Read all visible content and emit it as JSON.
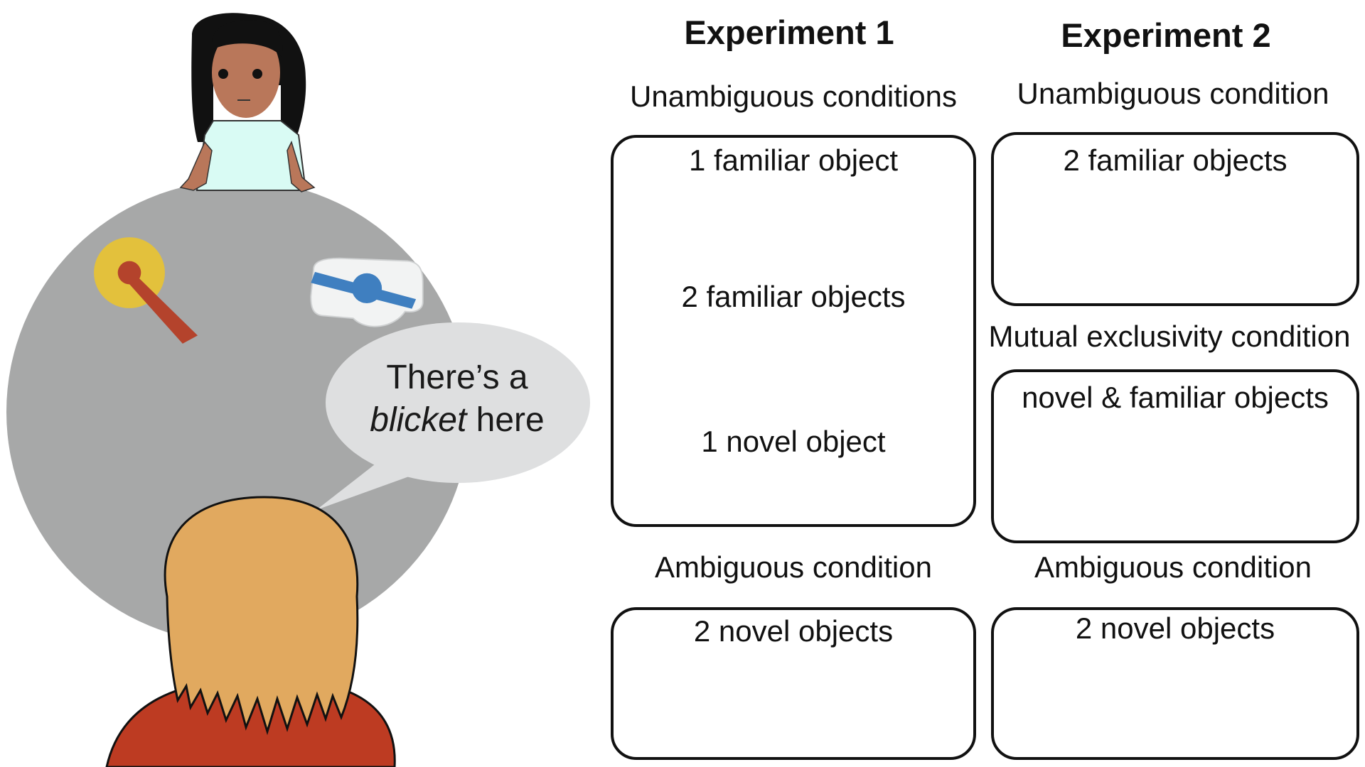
{
  "speech_bubble": {
    "line1": "There’s a",
    "line2_emphasis": "blicket",
    "line2_rest": " here"
  },
  "experiment1": {
    "heading": "Experiment 1",
    "unambiguous": {
      "label": "Unambiguous conditions",
      "items": [
        "1 familiar object",
        "2 familiar objects",
        "1 novel object"
      ]
    },
    "ambiguous": {
      "label": "Ambiguous condition",
      "items": [
        "2 novel objects"
      ]
    }
  },
  "experiment2": {
    "heading": "Experiment 2",
    "unambiguous": {
      "label": "Unambiguous condition",
      "items": [
        "2 familiar objects"
      ]
    },
    "mutual_exclusivity": {
      "label": "Mutual exclusivity condition",
      "items": [
        "novel & familiar objects"
      ]
    },
    "ambiguous": {
      "label": "Ambiguous condition",
      "items": [
        "2 novel objects"
      ]
    }
  },
  "colors": {
    "table": "#a7a8a8",
    "apple": "#a73a2b",
    "leaf": "#4a9a3a",
    "banana": "#edd13f",
    "novel_disc": "#e3c13c",
    "novel_pointer": "#b4432c",
    "novel_bar": "#3f7fc0",
    "bubble": "#dedfe0",
    "child_hair": "#e1a95f",
    "child_shirt": "#bd3b22",
    "adult_skin": "#b9775a",
    "adult_shirt": "#d9fbf4"
  }
}
